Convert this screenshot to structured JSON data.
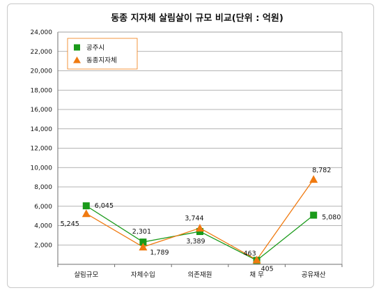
{
  "chart_data": {
    "type": "line",
    "title": "동종 지자체 살림살이 규모 비교(단위 : 억원)",
    "categories": [
      "살림규모",
      "자체수입",
      "의존재원",
      "채 무",
      "공유재산"
    ],
    "y_ticks": [
      "2,000",
      "4,000",
      "6,000",
      "8,000",
      "10,000",
      "12,000",
      "14,000",
      "16,000",
      "18,000",
      "20,000",
      "22,000",
      "24,000"
    ],
    "ylim": [
      0,
      24000
    ],
    "grid": "horizontal",
    "legend_position": "top-left",
    "series": [
      {
        "name": "공주시",
        "color": "#1a9a1a",
        "marker": "square",
        "values": [
          6045,
          2301,
          3389,
          405,
          5080
        ],
        "labels": [
          "6,045",
          "2,301",
          "3,389",
          "405",
          "5,080"
        ]
      },
      {
        "name": "동종지자체",
        "color": "#f07a10",
        "marker": "triangle",
        "values": [
          5245,
          1789,
          3744,
          463,
          8782
        ],
        "labels": [
          "5,245",
          "1,789",
          "3,744",
          "463",
          "8,782"
        ]
      }
    ]
  }
}
